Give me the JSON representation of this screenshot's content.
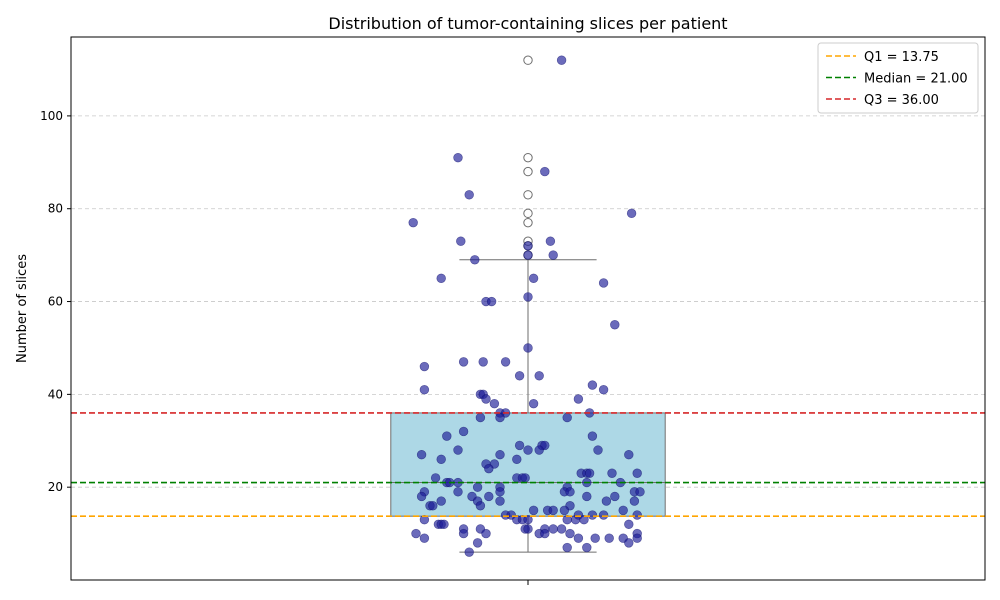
{
  "chart_data": {
    "type": "box",
    "title": "Distribution of tumor-containing slices per patient",
    "xlabel": "",
    "ylabel": "Number of slices",
    "ylim": [
      0,
      117
    ],
    "yticks": [
      20,
      40,
      60,
      80,
      100
    ],
    "grid": "y-dashed",
    "legend_position": "top-right",
    "colors": {
      "box_fill": "#add8e6",
      "box_edge": "#6e6e6e",
      "points": "#1c1c96",
      "q1_line": "#ffa500",
      "median_line": "#008000",
      "q3_line": "#d62728",
      "grid": "#c8c8c8"
    },
    "box": {
      "q1": 13.75,
      "median": 21.0,
      "q3": 36.0,
      "whisker_low": 6,
      "whisker_high": 69,
      "fliers": [
        70,
        72,
        73,
        77,
        79,
        83,
        88,
        91,
        112
      ]
    },
    "reference_lines": [
      {
        "name": "Q1 = 13.75",
        "value": 13.75,
        "color": "#ffa500"
      },
      {
        "name": "Median = 21.00",
        "value": 21.0,
        "color": "#008000"
      },
      {
        "name": "Q3 = 36.00",
        "value": 36.0,
        "color": "#d62728"
      }
    ],
    "points": [
      {
        "x": -0.41,
        "y": 77
      },
      {
        "x": -0.25,
        "y": 91
      },
      {
        "x": -0.21,
        "y": 83
      },
      {
        "x": 0.06,
        "y": 88
      },
      {
        "x": 0.12,
        "y": 112
      },
      {
        "x": 0.37,
        "y": 79
      },
      {
        "x": -0.24,
        "y": 73
      },
      {
        "x": 0.0,
        "y": 72
      },
      {
        "x": 0.08,
        "y": 73
      },
      {
        "x": -0.19,
        "y": 69
      },
      {
        "x": 0.0,
        "y": 70
      },
      {
        "x": 0.09,
        "y": 70
      },
      {
        "x": -0.31,
        "y": 65
      },
      {
        "x": 0.02,
        "y": 65
      },
      {
        "x": 0.27,
        "y": 64
      },
      {
        "x": -0.15,
        "y": 60
      },
      {
        "x": -0.13,
        "y": 60
      },
      {
        "x": 0.0,
        "y": 61
      },
      {
        "x": 0.31,
        "y": 55
      },
      {
        "x": 0.0,
        "y": 50
      },
      {
        "x": -0.37,
        "y": 46
      },
      {
        "x": -0.23,
        "y": 47
      },
      {
        "x": -0.16,
        "y": 47
      },
      {
        "x": -0.08,
        "y": 47
      },
      {
        "x": -0.03,
        "y": 44
      },
      {
        "x": 0.04,
        "y": 44
      },
      {
        "x": 0.23,
        "y": 42
      },
      {
        "x": 0.27,
        "y": 41
      },
      {
        "x": -0.37,
        "y": 41
      },
      {
        "x": -0.17,
        "y": 40
      },
      {
        "x": -0.16,
        "y": 40
      },
      {
        "x": 0.18,
        "y": 39
      },
      {
        "x": -0.15,
        "y": 39
      },
      {
        "x": -0.12,
        "y": 38
      },
      {
        "x": 0.02,
        "y": 38
      },
      {
        "x": -0.17,
        "y": 35
      },
      {
        "x": -0.1,
        "y": 36
      },
      {
        "x": -0.08,
        "y": 36
      },
      {
        "x": -0.1,
        "y": 35
      },
      {
        "x": 0.14,
        "y": 35
      },
      {
        "x": 0.22,
        "y": 36
      },
      {
        "x": -0.23,
        "y": 32
      },
      {
        "x": -0.29,
        "y": 31
      },
      {
        "x": 0.23,
        "y": 31
      },
      {
        "x": -0.03,
        "y": 29
      },
      {
        "x": 0.05,
        "y": 29
      },
      {
        "x": 0.06,
        "y": 29
      },
      {
        "x": -0.25,
        "y": 28
      },
      {
        "x": 0.0,
        "y": 28
      },
      {
        "x": 0.04,
        "y": 28
      },
      {
        "x": 0.25,
        "y": 28
      },
      {
        "x": -0.38,
        "y": 27
      },
      {
        "x": -0.1,
        "y": 27
      },
      {
        "x": 0.36,
        "y": 27
      },
      {
        "x": -0.31,
        "y": 26
      },
      {
        "x": -0.04,
        "y": 26
      },
      {
        "x": -0.15,
        "y": 25
      },
      {
        "x": -0.12,
        "y": 25
      },
      {
        "x": -0.14,
        "y": 24
      },
      {
        "x": 0.19,
        "y": 23
      },
      {
        "x": 0.21,
        "y": 23
      },
      {
        "x": 0.22,
        "y": 23
      },
      {
        "x": 0.3,
        "y": 23
      },
      {
        "x": 0.39,
        "y": 23
      },
      {
        "x": -0.33,
        "y": 22
      },
      {
        "x": -0.04,
        "y": 22
      },
      {
        "x": -0.02,
        "y": 22
      },
      {
        "x": -0.01,
        "y": 22
      },
      {
        "x": -0.29,
        "y": 21
      },
      {
        "x": -0.28,
        "y": 21
      },
      {
        "x": -0.25,
        "y": 21
      },
      {
        "x": 0.21,
        "y": 21
      },
      {
        "x": 0.33,
        "y": 21
      },
      {
        "x": -0.18,
        "y": 20
      },
      {
        "x": -0.1,
        "y": 20
      },
      {
        "x": 0.14,
        "y": 20
      },
      {
        "x": -0.37,
        "y": 19
      },
      {
        "x": -0.25,
        "y": 19
      },
      {
        "x": -0.1,
        "y": 19
      },
      {
        "x": 0.13,
        "y": 19
      },
      {
        "x": 0.15,
        "y": 19
      },
      {
        "x": 0.38,
        "y": 19
      },
      {
        "x": 0.4,
        "y": 19
      },
      {
        "x": -0.38,
        "y": 18
      },
      {
        "x": -0.2,
        "y": 18
      },
      {
        "x": -0.14,
        "y": 18
      },
      {
        "x": 0.21,
        "y": 18
      },
      {
        "x": 0.31,
        "y": 18
      },
      {
        "x": -0.31,
        "y": 17
      },
      {
        "x": -0.18,
        "y": 17
      },
      {
        "x": -0.1,
        "y": 17
      },
      {
        "x": 0.28,
        "y": 17
      },
      {
        "x": 0.38,
        "y": 17
      },
      {
        "x": -0.35,
        "y": 16
      },
      {
        "x": -0.34,
        "y": 16
      },
      {
        "x": -0.17,
        "y": 16
      },
      {
        "x": 0.15,
        "y": 16
      },
      {
        "x": 0.02,
        "y": 15
      },
      {
        "x": 0.07,
        "y": 15
      },
      {
        "x": 0.09,
        "y": 15
      },
      {
        "x": 0.13,
        "y": 15
      },
      {
        "x": 0.34,
        "y": 15
      },
      {
        "x": -0.08,
        "y": 14
      },
      {
        "x": -0.06,
        "y": 14
      },
      {
        "x": 0.18,
        "y": 14
      },
      {
        "x": 0.23,
        "y": 14
      },
      {
        "x": 0.27,
        "y": 14
      },
      {
        "x": 0.39,
        "y": 14
      },
      {
        "x": -0.37,
        "y": 13
      },
      {
        "x": -0.04,
        "y": 13
      },
      {
        "x": -0.02,
        "y": 13
      },
      {
        "x": 0.0,
        "y": 13
      },
      {
        "x": 0.14,
        "y": 13
      },
      {
        "x": 0.17,
        "y": 13
      },
      {
        "x": 0.2,
        "y": 13
      },
      {
        "x": -0.32,
        "y": 12
      },
      {
        "x": -0.31,
        "y": 12
      },
      {
        "x": -0.3,
        "y": 12
      },
      {
        "x": 0.36,
        "y": 12
      },
      {
        "x": -0.23,
        "y": 11
      },
      {
        "x": -0.17,
        "y": 11
      },
      {
        "x": -0.01,
        "y": 11
      },
      {
        "x": 0.0,
        "y": 11
      },
      {
        "x": 0.06,
        "y": 11
      },
      {
        "x": 0.09,
        "y": 11
      },
      {
        "x": 0.12,
        "y": 11
      },
      {
        "x": -0.4,
        "y": 10
      },
      {
        "x": -0.23,
        "y": 10
      },
      {
        "x": -0.15,
        "y": 10
      },
      {
        "x": 0.04,
        "y": 10
      },
      {
        "x": 0.06,
        "y": 10
      },
      {
        "x": 0.15,
        "y": 10
      },
      {
        "x": 0.39,
        "y": 10
      },
      {
        "x": -0.37,
        "y": 9
      },
      {
        "x": 0.18,
        "y": 9
      },
      {
        "x": 0.24,
        "y": 9
      },
      {
        "x": 0.29,
        "y": 9
      },
      {
        "x": 0.34,
        "y": 9
      },
      {
        "x": 0.39,
        "y": 9
      },
      {
        "x": -0.18,
        "y": 8
      },
      {
        "x": 0.36,
        "y": 8
      },
      {
        "x": 0.14,
        "y": 7
      },
      {
        "x": 0.21,
        "y": 7
      },
      {
        "x": -0.21,
        "y": 6
      }
    ]
  }
}
